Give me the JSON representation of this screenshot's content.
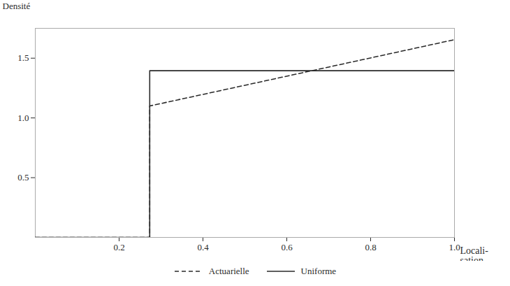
{
  "chart_data": {
    "type": "line",
    "ylabel": "Densité",
    "xlabel": "Locali-\nsation",
    "x": [
      0.0,
      0.273,
      0.273,
      1.0
    ],
    "series": [
      {
        "name": "Actuarielle",
        "color": "#2a2a2a",
        "line_style": "dashed",
        "values": [
          0.0,
          0.0,
          1.1,
          1.655
        ]
      },
      {
        "name": "Uniforme",
        "color": "#2a2a2a",
        "line_style": "solid",
        "values": [
          0.0,
          0.0,
          1.395,
          1.395
        ]
      }
    ],
    "xlim": [
      0.0,
      1.0
    ],
    "ylim": [
      0.0,
      1.75
    ],
    "xticks": [
      0.2,
      0.4,
      0.6,
      0.8,
      {
        "value": 1.0,
        "label": "1.0"
      }
    ],
    "yticks": [
      0.5,
      {
        "value": 1.0,
        "label": "1.0"
      },
      1.5
    ],
    "grid": false,
    "legend": "bottom"
  }
}
